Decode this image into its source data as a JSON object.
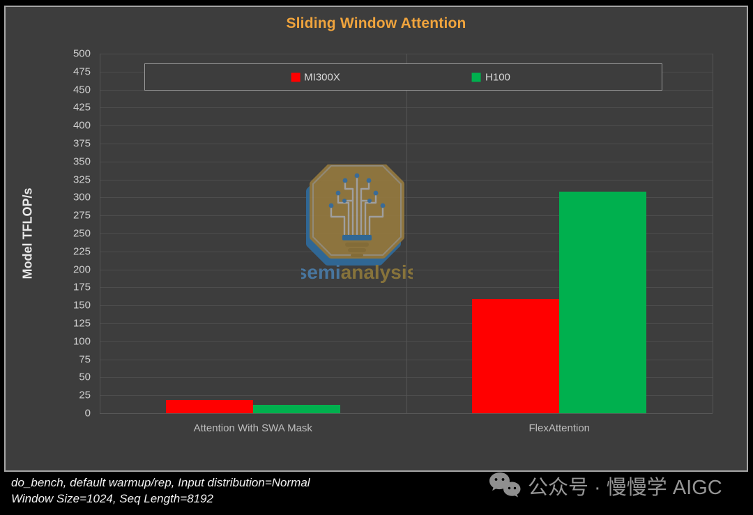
{
  "chart_data": {
    "type": "bar",
    "title": "Sliding Window Attention",
    "categories": [
      "Attention With SWA Mask",
      "FlexAttention"
    ],
    "series": [
      {
        "name": "MI300X",
        "color": "#ff0000",
        "values": [
          18,
          159
        ]
      },
      {
        "name": "H100",
        "color": "#00b04e",
        "values": [
          12,
          308
        ]
      }
    ],
    "xlabel": "",
    "ylabel": "Model TFLOP/s",
    "ylim": [
      0,
      500
    ],
    "ytick_step": 25,
    "grid": true,
    "legend_position": "top-inside-box"
  },
  "colors": {
    "page_background": "#000000",
    "panel_background": "#3d3d3d",
    "panel_border": "#a6a6a6",
    "title": "#f0a43d",
    "gridline": "#4d4d4d",
    "tick_text": "#cfcfcf",
    "mi300x_red": "#ff0000",
    "h100_green": "#00b04e"
  },
  "watermark": {
    "brand_prefix": "semi",
    "brand_suffix": "analysis",
    "prefix_color": "#4a7ba8",
    "suffix_color": "#8e783b"
  },
  "footnote": {
    "line1": "do_bench, default warmup/rep, Input distribution=Normal",
    "line2": "Window Size=1024, Seq Length=8192"
  },
  "wechat": {
    "label": "公众号 · 慢慢学 AIGC"
  }
}
